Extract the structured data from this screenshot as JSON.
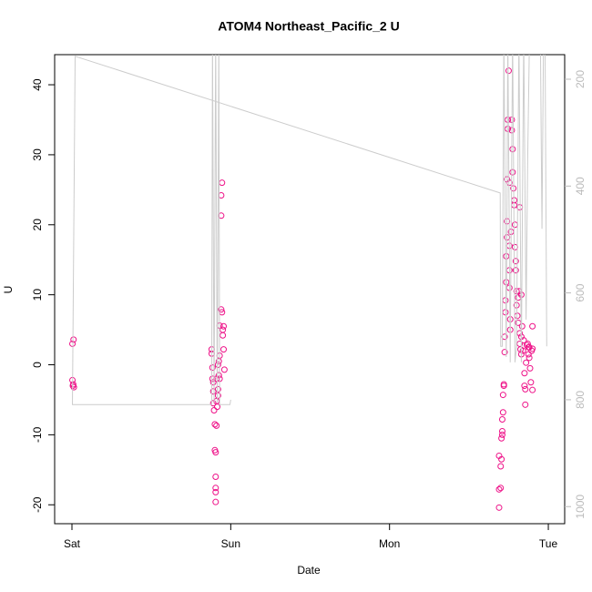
{
  "chart_data": {
    "type": "scatter",
    "title": "ATOM4 Northeast_Pacific_2 U",
    "x_label": "Date",
    "y_label": "U",
    "xlim": [
      -0.109,
      3.103
    ],
    "xticks": [
      {
        "value": 0,
        "label": "Sat"
      },
      {
        "value": 1,
        "label": "Sun"
      },
      {
        "value": 2,
        "label": "Mon"
      },
      {
        "value": 3,
        "label": "Tue"
      }
    ],
    "ylim": [
      -22.7,
      44.3
    ],
    "yticks": [
      -20,
      -10,
      0,
      10,
      20,
      30,
      40
    ],
    "y2lim": [
      1032,
      154
    ],
    "y2ticks": [
      200,
      400,
      600,
      800,
      1000
    ],
    "y2_color": "#bbbbbb",
    "series": [
      {
        "mark": "points",
        "color": "#ee1188",
        "x": [
          0.003,
          0.01,
          0.003,
          0.006,
          0.012,
          0.008,
          0.88,
          0.88,
          0.885,
          0.885,
          0.89,
          0.89,
          0.89,
          0.895,
          0.9,
          0.9,
          0.905,
          0.905,
          0.905,
          0.905,
          0.905,
          0.91,
          0.91,
          0.915,
          0.91,
          0.92,
          0.92,
          0.925,
          0.93,
          0.925,
          0.93,
          0.93,
          0.94,
          0.945,
          0.94,
          0.94,
          0.945,
          0.95,
          0.95,
          0.955,
          0.955,
          0.96,
          0.92,
          2.69,
          2.69,
          2.69,
          2.7,
          2.7,
          2.705,
          2.705,
          2.71,
          2.71,
          2.71,
          2.715,
          2.715,
          2.72,
          2.72,
          2.725,
          2.725,
          2.73,
          2.73,
          2.735,
          2.735,
          2.74,
          2.74,
          2.74,
          2.745,
          2.745,
          2.75,
          2.755,
          2.755,
          2.755,
          2.755,
          2.76,
          2.76,
          2.765,
          2.77,
          2.77,
          2.775,
          2.775,
          2.78,
          2.785,
          2.785,
          2.79,
          2.79,
          2.795,
          2.795,
          2.8,
          2.8,
          2.805,
          2.81,
          2.81,
          2.815,
          2.82,
          2.82,
          2.825,
          2.83,
          2.83,
          2.835,
          2.84,
          2.845,
          2.85,
          2.85,
          2.855,
          2.855,
          2.86,
          2.865,
          2.87,
          2.875,
          2.88,
          2.885,
          2.89,
          2.9,
          2.9,
          2.895,
          2.88,
          2.9,
          2.875,
          2.82,
          2.83
        ],
        "values": [
          3.0,
          3.6,
          -2.2,
          -3.0,
          -3.2,
          -2.8,
          2.2,
          1.6,
          -0.4,
          -2.0,
          -2.5,
          -3.8,
          -5.5,
          -6.5,
          -8.5,
          -12.2,
          -12.5,
          -16.0,
          -17.6,
          -18.2,
          -19.6,
          -8.7,
          -5.2,
          -6.0,
          -2.0,
          -3.5,
          -4.4,
          -1.5,
          -2.0,
          0.5,
          1.3,
          5.6,
          7.9,
          7.5,
          21.3,
          24.2,
          26.0,
          4.2,
          5.0,
          5.5,
          2.2,
          -0.7,
          0.0,
          -20.4,
          -17.8,
          -13.0,
          -14.5,
          -17.6,
          -10.5,
          -13.5,
          -10.0,
          -9.5,
          -7.8,
          -6.8,
          -4.3,
          -3.0,
          -2.8,
          1.8,
          4.0,
          7.5,
          9.2,
          11.8,
          15.5,
          18.2,
          20.5,
          26.5,
          33.7,
          35.0,
          42.0,
          26.0,
          17.0,
          13.5,
          11.0,
          6.5,
          5.0,
          19.0,
          35.0,
          33.5,
          30.8,
          27.5,
          25.2,
          23.5,
          22.8,
          20.0,
          16.8,
          14.8,
          13.5,
          10.5,
          8.5,
          7.0,
          6.0,
          9.6,
          10.5,
          4.5,
          3.0,
          2.2,
          1.5,
          4.0,
          5.5,
          2.0,
          3.5,
          -1.2,
          -3.0,
          -3.5,
          -5.7,
          0.3,
          2.8,
          3.0,
          2.5,
          1.0,
          -0.5,
          -2.5,
          -3.6,
          5.5,
          2.0,
          2.5,
          2.3,
          1.5,
          22.5,
          10.0
        ]
      },
      {
        "mark": "line",
        "axis": "y2",
        "color": "#cccccc",
        "x": [
          1.0,
          0.995,
          0.93,
          0.925,
          0.915,
          0.905,
          0.895,
          0.885,
          0.88,
          0.003,
          0.02,
          2.697,
          2.7,
          2.71,
          2.72,
          2.735,
          2.745,
          2.76,
          2.775,
          2.79,
          2.8,
          2.815,
          2.83,
          2.845,
          2.86,
          2.87,
          2.88,
          2.95,
          2.96,
          2.97,
          2.98,
          2.99
        ],
        "values": [
          800,
          809,
          809,
          120,
          805,
          120,
          805,
          120,
          809,
          809,
          157,
          413,
          700,
          700,
          120,
          720,
          120,
          730,
          120,
          730,
          700,
          120,
          730,
          120,
          650,
          350,
          150,
          120,
          480,
          120,
          160,
          700
        ]
      }
    ]
  }
}
